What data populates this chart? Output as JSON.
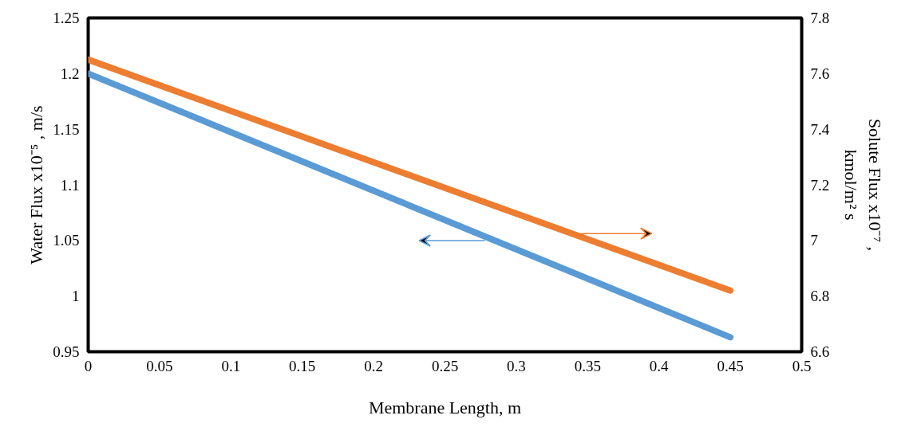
{
  "chart_data": {
    "type": "line",
    "xlabel": "Membrane Length, m",
    "ylabel": "Water Flux x10⁻⁵ , m/s",
    "y2label": "Solute Flux x10⁻⁷ ,\nkmol/m² s",
    "x": [
      0,
      0.45
    ],
    "series": [
      {
        "color": "#5b9bd5",
        "values": [
          1.2,
          0.963
        ]
      },
      {
        "color": "#ed7d31",
        "values": [
          7.65,
          6.82
        ],
        "axis": "y2"
      }
    ],
    "xlim": [
      0,
      0.5
    ],
    "xticks": [
      0,
      0.05,
      0.1,
      0.15,
      0.2,
      0.25,
      0.3,
      0.35,
      0.4,
      0.45,
      0.5
    ],
    "ylim": [
      0.95,
      1.25
    ],
    "yticks": [
      0.95,
      1,
      1.05,
      1.1,
      1.15,
      1.2,
      1.25
    ],
    "y2lim": [
      6.6,
      7.8
    ],
    "y2ticks": [
      6.6,
      6.8,
      7,
      7.2,
      7.4,
      7.6,
      7.8
    ],
    "grid": false,
    "marker": "none",
    "line_style": "solid"
  }
}
